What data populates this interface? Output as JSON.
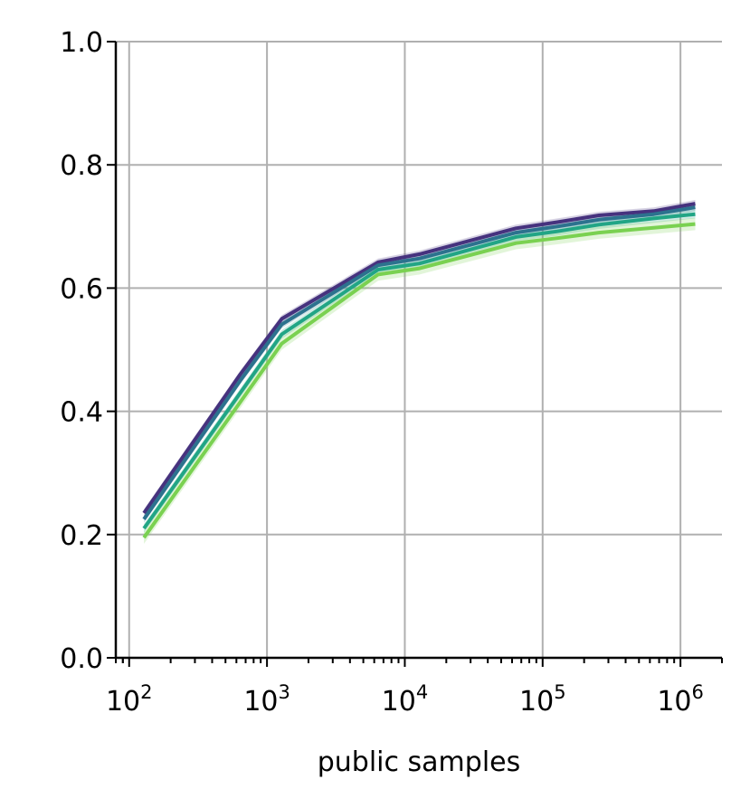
{
  "chart_data": {
    "type": "line",
    "title": "",
    "xlabel": "public samples",
    "ylabel": "",
    "xscale": "log",
    "xlim": [
      80,
      2000000
    ],
    "ylim": [
      0.0,
      1.0
    ],
    "grid": true,
    "x_ticks": [
      {
        "value": 100,
        "base": "10",
        "exp": "2"
      },
      {
        "value": 1000,
        "base": "10",
        "exp": "3"
      },
      {
        "value": 10000,
        "base": "10",
        "exp": "4"
      },
      {
        "value": 100000,
        "base": "10",
        "exp": "5"
      },
      {
        "value": 1000000,
        "base": "10",
        "exp": "6"
      }
    ],
    "y_ticks": [
      "0.0",
      "0.2",
      "0.4",
      "0.6",
      "0.8",
      "1.0"
    ],
    "x": [
      128,
      640,
      1280,
      6400,
      12800,
      64000,
      128000,
      256000,
      640000,
      1280000
    ],
    "series": [
      {
        "color": "#46327e",
        "values": [
          0.235,
          0.46,
          0.55,
          0.642,
          0.655,
          0.697,
          0.707,
          0.718,
          0.725,
          0.737
        ],
        "band": 0.006
      },
      {
        "color": "#2c728e",
        "values": [
          0.225,
          0.45,
          0.541,
          0.637,
          0.648,
          0.69,
          0.7,
          0.711,
          0.72,
          0.731
        ],
        "band": 0.006
      },
      {
        "color": "#21a585",
        "values": [
          0.21,
          0.43,
          0.525,
          0.63,
          0.64,
          0.683,
          0.692,
          0.703,
          0.713,
          0.72
        ],
        "band": 0.007
      },
      {
        "color": "#7ad151",
        "values": [
          0.195,
          0.415,
          0.51,
          0.622,
          0.632,
          0.673,
          0.681,
          0.69,
          0.698,
          0.704
        ],
        "band": 0.01
      }
    ]
  }
}
